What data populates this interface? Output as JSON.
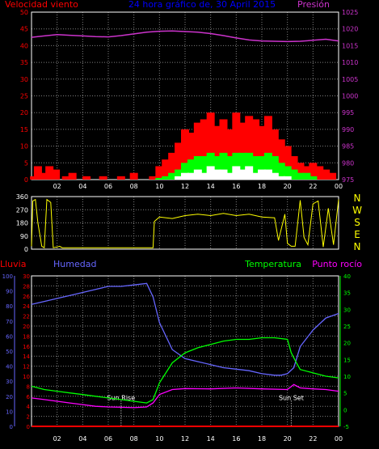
{
  "colors": {
    "background": "#000000",
    "frame": "#ffffff",
    "grid": "#7f7f7f",
    "wind": "#ff0000",
    "gust": "#ff0000",
    "wind_avg": "#00ff00",
    "wind_min": "#ffffff",
    "pressure": "#cc33cc",
    "direction": "#ffff00",
    "rain": "#ff0000",
    "humidity": "#6666ff",
    "temperature": "#00ff00",
    "dewpoint": "#ff00ff"
  },
  "header": {
    "wind_title": "Velocidad viento",
    "graph_title": "24 hora gráfico de, 30 April 2015",
    "pressure_title": "Presión"
  },
  "lower_header": {
    "rain": "Lluvia",
    "humidity": "Humedad",
    "temperature": "Temperatura",
    "dewpoint": "Punto rocío"
  },
  "markers": {
    "sunrise": "Sun Rise",
    "sunset": "Sun Set"
  },
  "chart_data": [
    {
      "id": "wind_pressure",
      "type": "bar",
      "x_ticks": [
        "02",
        "04",
        "06",
        "08",
        "10",
        "12",
        "14",
        "16",
        "18",
        "20",
        "22",
        "00"
      ],
      "y_left_ticks": [
        "0",
        "5",
        "10",
        "15",
        "20",
        "25",
        "30",
        "35",
        "40",
        "45",
        "50"
      ],
      "y_left_range": [
        0,
        50
      ],
      "y_right_ticks": [
        "975",
        "980",
        "985",
        "990",
        "995",
        "1000",
        "1005",
        "1010",
        "1015",
        "1020",
        "1025"
      ],
      "y_right_range": [
        975,
        1025
      ],
      "grid": true,
      "series": [
        {
          "name": "Velocidad viento",
          "kind": "gust",
          "x": [
            0.2,
            0.5,
            0.8,
            1.4,
            1.9,
            2.7,
            3.2,
            4.3,
            5.6,
            7.0,
            8.0,
            9.5,
            10.0,
            10.5,
            11.0,
            11.5,
            12.0,
            12.5,
            13.0,
            13.5,
            14.0,
            14.5,
            15.0,
            15.5,
            16.0,
            16.5,
            17.0,
            17.5,
            18.0,
            18.5,
            19.0,
            19.5,
            20.0,
            20.5,
            21.0,
            21.5,
            22.0,
            22.5,
            23.0,
            23.5
          ],
          "values": [
            1,
            4,
            2,
            4,
            3,
            1,
            2,
            1,
            1,
            1,
            2,
            1,
            4,
            6,
            8,
            11,
            15,
            14,
            17,
            18,
            20,
            16,
            18,
            15,
            20,
            17,
            19,
            18,
            16,
            19,
            15,
            12,
            10,
            7,
            5,
            4,
            5,
            4,
            3,
            2
          ]
        },
        {
          "name": "Velocidad viento media",
          "kind": "average",
          "x": [
            10.0,
            10.5,
            11.0,
            11.5,
            12.0,
            12.5,
            13.0,
            13.5,
            14.0,
            14.5,
            15.0,
            15.5,
            16.0,
            16.5,
            17.0,
            17.5,
            18.0,
            18.5,
            19.0,
            19.5,
            20.0,
            20.5,
            21.0,
            21.5,
            22.0
          ],
          "values": [
            0.5,
            1,
            2,
            3,
            5,
            6,
            7,
            7,
            8,
            7,
            8,
            7,
            8,
            8,
            8,
            7,
            7,
            8,
            7,
            5,
            4,
            3,
            2,
            2,
            1
          ]
        },
        {
          "name": "Velocidad viento mínima",
          "kind": "minimum",
          "x": [
            11.5,
            12.0,
            12.5,
            13.0,
            13.5,
            14.0,
            14.5,
            15.0,
            15.5,
            16.0,
            16.5,
            17.0,
            17.5,
            18.0,
            18.5,
            19.0,
            19.5,
            20.0
          ],
          "values": [
            1,
            2,
            2,
            3,
            2,
            4,
            3,
            3,
            2,
            4,
            3,
            4,
            2,
            3,
            3,
            2,
            1,
            1
          ]
        },
        {
          "name": "Presión",
          "kind": "pressure",
          "x": [
            0,
            1,
            2,
            3,
            4,
            5,
            6,
            7,
            8,
            9,
            10,
            11,
            12,
            13,
            14,
            15,
            16,
            17,
            18,
            19,
            20,
            21,
            22,
            23,
            24
          ],
          "values": [
            1017.5,
            1017.9,
            1018.3,
            1018.1,
            1017.9,
            1017.7,
            1017.6,
            1018.0,
            1018.5,
            1019.0,
            1019.3,
            1019.4,
            1019.2,
            1019.0,
            1018.6,
            1018.0,
            1017.3,
            1016.7,
            1016.4,
            1016.3,
            1016.2,
            1016.3,
            1016.6,
            1016.9,
            1016.4
          ]
        }
      ]
    },
    {
      "id": "wind_direction",
      "type": "line",
      "x_ticks": [
        "02",
        "04",
        "06",
        "08",
        "10",
        "12",
        "14",
        "16",
        "18",
        "20",
        "22",
        "00"
      ],
      "y_left_ticks": [
        "0",
        "90",
        "180",
        "270",
        "360"
      ],
      "y_left_range": [
        0,
        360
      ],
      "y_right_ticks": [
        "N",
        "W",
        "S",
        "E",
        "N"
      ],
      "grid": true,
      "series": [
        {
          "name": "Dirección viento",
          "x": [
            0,
            0.1,
            0.3,
            0.5,
            0.8,
            1.0,
            1.2,
            1.5,
            1.7,
            2.0,
            2.2,
            2.4,
            3.0,
            5.0,
            7.0,
            9.5,
            9.6,
            10.0,
            11.0,
            12.0,
            13.0,
            14.0,
            15.0,
            16.0,
            17.0,
            18.0,
            19.0,
            19.3,
            19.8,
            20.0,
            20.3,
            20.6,
            21.0,
            21.3,
            21.6,
            22.0,
            22.4,
            22.8,
            23.2,
            23.6,
            24.0
          ],
          "values": [
            20,
            330,
            340,
            180,
            20,
            10,
            340,
            320,
            10,
            15,
            20,
            10,
            10,
            10,
            10,
            10,
            190,
            220,
            210,
            230,
            240,
            230,
            245,
            230,
            240,
            220,
            215,
            60,
            240,
            40,
            20,
            20,
            335,
            80,
            30,
            310,
            330,
            15,
            280,
            30,
            340
          ]
        }
      ]
    },
    {
      "id": "temperature_humidity",
      "type": "line",
      "x_ticks": [
        "02",
        "04",
        "06",
        "08",
        "10",
        "12",
        "14",
        "16",
        "18",
        "20",
        "22",
        "00"
      ],
      "y_hum_ticks": [
        "0",
        "10",
        "20",
        "30",
        "40",
        "50",
        "60",
        "70",
        "80",
        "90",
        "100"
      ],
      "y_hum_range": [
        0,
        100
      ],
      "y_rain_ticks": [
        "0",
        "2",
        "4",
        "6",
        "8",
        "10",
        "12",
        "14",
        "16",
        "18",
        "20",
        "22",
        "24",
        "26",
        "28",
        "30"
      ],
      "y_rain_range": [
        0,
        30
      ],
      "y_temp_ticks": [
        "-5",
        "0",
        "5",
        "10",
        "15",
        "20",
        "25",
        "30",
        "35",
        "40"
      ],
      "y_temp_range": [
        -5,
        40
      ],
      "grid": true,
      "series": [
        {
          "name": "Lluvia",
          "x": [
            0,
            24
          ],
          "values": [
            0,
            0
          ]
        },
        {
          "name": "Humedad",
          "x": [
            0,
            1,
            2,
            3,
            4,
            5,
            6,
            7,
            8,
            9,
            9.5,
            10,
            11,
            12,
            13,
            14,
            15,
            16,
            17,
            18,
            19,
            19.5,
            20,
            20.5,
            21,
            22,
            23,
            24
          ],
          "values": [
            81,
            83,
            85,
            87,
            89,
            91,
            93,
            93,
            94,
            95,
            86,
            69,
            51,
            45,
            43,
            41,
            39,
            38,
            37,
            35,
            34,
            34,
            35,
            39,
            53,
            64,
            72,
            75
          ]
        },
        {
          "name": "Temperatura",
          "x": [
            0,
            1,
            2,
            3,
            4,
            5,
            6,
            7,
            8,
            9,
            9.5,
            10,
            11,
            12,
            13,
            14,
            15,
            16,
            17,
            18,
            19,
            20,
            20.3,
            20.7,
            21,
            22,
            23,
            24
          ],
          "values": [
            7,
            6,
            5.5,
            5,
            4.5,
            4,
            3.5,
            3,
            2.5,
            2,
            3,
            8,
            14,
            17,
            18.5,
            19.5,
            20.5,
            21,
            21,
            21.5,
            21.5,
            21,
            17,
            14,
            12,
            11,
            10,
            9.5
          ]
        },
        {
          "name": "Punto rocío",
          "x": [
            0,
            1,
            2,
            3,
            4,
            5,
            6,
            7,
            8,
            9,
            9.5,
            10,
            11,
            12,
            14,
            16,
            18,
            20,
            20.5,
            21,
            22,
            23,
            24
          ],
          "values": [
            3.5,
            3,
            2.5,
            2,
            1.5,
            1,
            0.8,
            0.7,
            0.6,
            0.8,
            2,
            4.5,
            6,
            6.3,
            6.2,
            6.5,
            6.2,
            6,
            7.5,
            6.5,
            6.2,
            6,
            5.5
          ]
        }
      ]
    }
  ]
}
